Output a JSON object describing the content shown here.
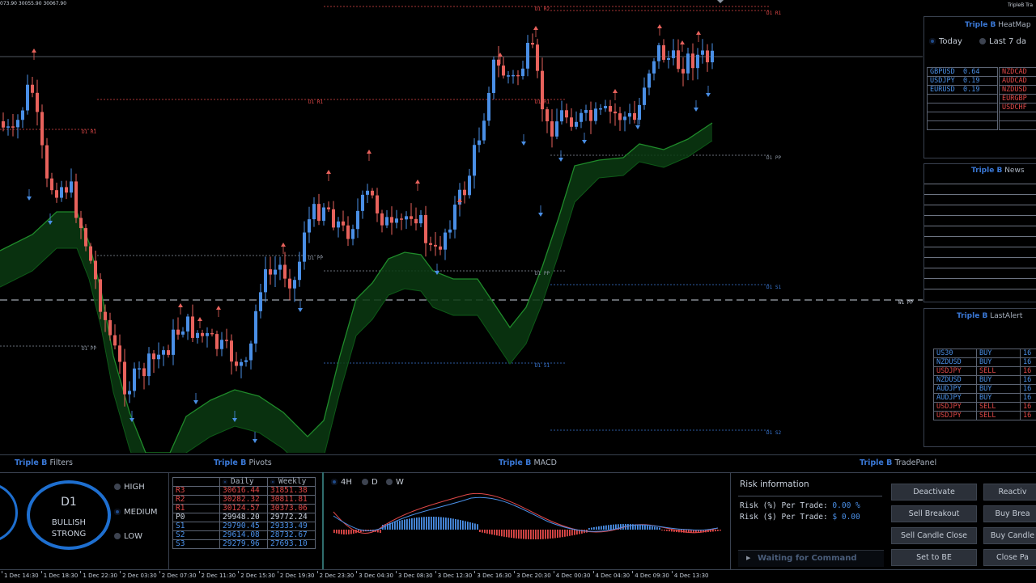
{
  "chart": {
    "top_info": "073.90 30055.90 30067.90",
    "top_right": "TripleB Tra",
    "levels": [
      {
        "label": "D1 R2",
        "color": "#e04848"
      },
      {
        "label": "D1 R1",
        "color": "#e04848"
      },
      {
        "label": "D1 R1",
        "color": "#e04848"
      },
      {
        "label": "D1 R1",
        "color": "#e04848"
      },
      {
        "label": "D1 R1",
        "color": "#e04848"
      },
      {
        "label": "D1 PP",
        "color": "#8a93a0"
      },
      {
        "label": "D1 PP",
        "color": "#8a93a0"
      },
      {
        "label": "D1 PP",
        "color": "#8a93a0"
      },
      {
        "label": "D1 PP",
        "color": "#8a93a0"
      },
      {
        "label": "D1 S1",
        "color": "#3a78d6"
      },
      {
        "label": "D1 S1",
        "color": "#3a78d6"
      },
      {
        "label": "D1 S2",
        "color": "#3a78d6"
      },
      {
        "label": "W1 PP",
        "color": "#c8d0dc"
      }
    ],
    "x_labels": [
      "1 Dec 14:30",
      "1 Dec 18:30",
      "1 Dec 22:30",
      "2 Dec 03:30",
      "2 Dec 07:30",
      "2 Dec 11:30",
      "2 Dec 15:30",
      "2 Dec 19:30",
      "2 Dec 23:30",
      "3 Dec 04:30",
      "3 Dec 08:30",
      "3 Dec 12:30",
      "3 Dec 16:30",
      "3 Dec 20:30",
      "4 Dec 00:30",
      "4 Dec 04:30",
      "4 Dec 09:30",
      "4 Dec 13:30"
    ]
  },
  "heatmap": {
    "title_brand": "Triple B",
    "title_name": "HeatMap",
    "opt_today": "Today",
    "opt_last7": "Last 7 da",
    "left": [
      {
        "pair": "GBPUSD",
        "value": "0.64"
      },
      {
        "pair": "USDJPY",
        "value": "0.19"
      },
      {
        "pair": "EURUSD",
        "value": "0.19"
      }
    ],
    "right": [
      "NZDCAD",
      "AUDCAD",
      "NZDUSD",
      "EURGBP",
      "USDCHF"
    ]
  },
  "news": {
    "title_brand": "Triple B",
    "title_name": "News"
  },
  "alerts": {
    "title_brand": "Triple B",
    "title_name": "LastAlert",
    "rows": [
      {
        "pair": "US30",
        "side": "BUY",
        "val": "16"
      },
      {
        "pair": "NZDUSD",
        "side": "BUY",
        "val": "16"
      },
      {
        "pair": "USDJPY",
        "side": "SELL",
        "val": "16"
      },
      {
        "pair": "NZDUSD",
        "side": "BUY",
        "val": "16"
      },
      {
        "pair": "AUDJPY",
        "side": "BUY",
        "val": "16"
      },
      {
        "pair": "AUDJPY",
        "side": "BUY",
        "val": "16"
      },
      {
        "pair": "USDJPY",
        "side": "SELL",
        "val": "16"
      },
      {
        "pair": "USDJPY",
        "side": "SELL",
        "val": "16"
      }
    ]
  },
  "filters": {
    "title_brand": "Triple B",
    "title_name": "Filters",
    "timeframe": "D1",
    "signal_line1": "BULLISH",
    "signal_line2": "STRONG",
    "options": [
      "HIGH",
      "MEDIUM",
      "LOW"
    ],
    "selected": "MEDIUM"
  },
  "pivots": {
    "title_brand": "Triple B",
    "title_name": "Pivots",
    "col_daily": "Daily",
    "col_weekly": "Weekly",
    "rows": [
      {
        "label": "R3",
        "daily": "30616.44",
        "weekly": "31851.38"
      },
      {
        "label": "R2",
        "daily": "30282.32",
        "weekly": "30811.81"
      },
      {
        "label": "R1",
        "daily": "30124.57",
        "weekly": "30373.06"
      },
      {
        "label": "P0",
        "daily": "29948.20",
        "weekly": "29772.24"
      },
      {
        "label": "S1",
        "daily": "29790.45",
        "weekly": "29333.49"
      },
      {
        "label": "S2",
        "daily": "29614.08",
        "weekly": "28732.67"
      },
      {
        "label": "S3",
        "daily": "29279.96",
        "weekly": "27693.10"
      }
    ]
  },
  "macd": {
    "title_brand": "Triple B",
    "title_name": "MACD",
    "tf_4h": "4H",
    "tf_d": "D",
    "tf_w": "W"
  },
  "tradepanel": {
    "title_brand": "Triple B",
    "title_name": "TradePanel",
    "risk_title": "Risk information",
    "risk_pct_label": "Risk (%) Per Trade:",
    "risk_pct_value": "0.00 %",
    "risk_usd_label": "Risk ($) Per Trade:",
    "risk_usd_value": "$ 0.00",
    "status": "Waiting for Command",
    "buttons": {
      "deactivate": "Deactivate",
      "reactivate": "Reactiv",
      "sell_breakout": "Sell Breakout",
      "buy_breakout": "Buy Brea",
      "sell_candle_close": "Sell Candle Close",
      "buy_candle_close": "Buy Candle",
      "set_to_be": "Set to BE",
      "close_partial": "Close Pa"
    }
  },
  "colors": {
    "bull": "#4a8fe6",
    "bear": "#e8625c",
    "cloud": "#1f8a2a",
    "accent": "#3a78d6"
  }
}
